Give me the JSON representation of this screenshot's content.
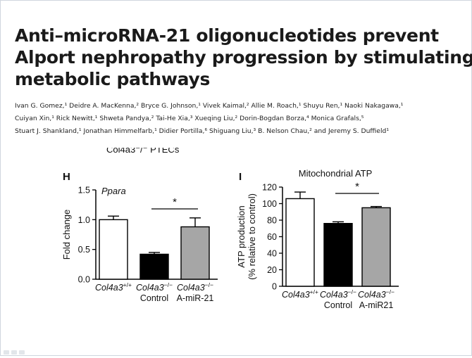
{
  "title_lines": [
    "Anti–microRNA-21 oligonucleotides prevent",
    "Alport nephropathy progression by stimulating",
    "metabolic pathways"
  ],
  "author_lines": [
    "Ivan G. Gomez,¹ Deidre A. MacKenna,² Bryce G. Johnson,¹ Vivek Kaimal,² Allie M. Roach,¹ Shuyu Ren,¹ Naoki Nakagawa,¹",
    "Cuiyan Xin,¹ Rick Newitt,¹ Shweta Pandya,² Tai-He Xia,³ Xueqing Liu,² Dorin-Bogdan Borza,⁴ Monica Grafals,⁵",
    "Stuart J. Shankland,¹ Jonathan Himmelfarb,¹ Didier Portilla,⁶ Shiguang Liu,³ B. Nelson Chau,² and Jeremy S. Duffield¹"
  ],
  "cut_off_text": "Col4a3⁻/⁻ PTECs",
  "chart_data": [
    {
      "type": "bar",
      "panel_label": "H",
      "title": "Ppara",
      "ylabel": "Fold change",
      "ylim": [
        0,
        1.5
      ],
      "yticks": [
        "0.0",
        "0.5",
        "1.0",
        "1.5"
      ],
      "category_lines": [
        [
          "Col4a3",
          "+/+",
          ""
        ],
        [
          "Col4a3",
          "−/−",
          "Control"
        ],
        [
          "Col4a3",
          "−/−",
          "A-miR-21"
        ]
      ],
      "values": [
        1.0,
        0.42,
        0.88
      ],
      "errors": [
        0.06,
        0.03,
        0.15
      ],
      "bar_colors": [
        "#ffffff",
        "#000000",
        "#a6a6a6"
      ],
      "significance": {
        "label": "*",
        "between": [
          1,
          2
        ]
      }
    },
    {
      "type": "bar",
      "panel_label": "I",
      "title": "Mitochondrial ATP",
      "ylabel_lines": [
        "ATP production",
        "(% relative to control)"
      ],
      "ylim": [
        0,
        120
      ],
      "yticks": [
        "0",
        "20",
        "40",
        "60",
        "80",
        "100",
        "120"
      ],
      "category_lines": [
        [
          "Col4a3",
          "+/+",
          ""
        ],
        [
          "Col4a3",
          "−/−",
          "Control"
        ],
        [
          "Col4a3",
          "−/−",
          "A-miR21"
        ]
      ],
      "values": [
        106,
        76,
        95
      ],
      "errors": [
        8,
        2,
        1.5
      ],
      "bar_colors": [
        "#ffffff",
        "#000000",
        "#a6a6a6"
      ],
      "significance": {
        "label": "*",
        "between": [
          1,
          2
        ]
      }
    }
  ]
}
